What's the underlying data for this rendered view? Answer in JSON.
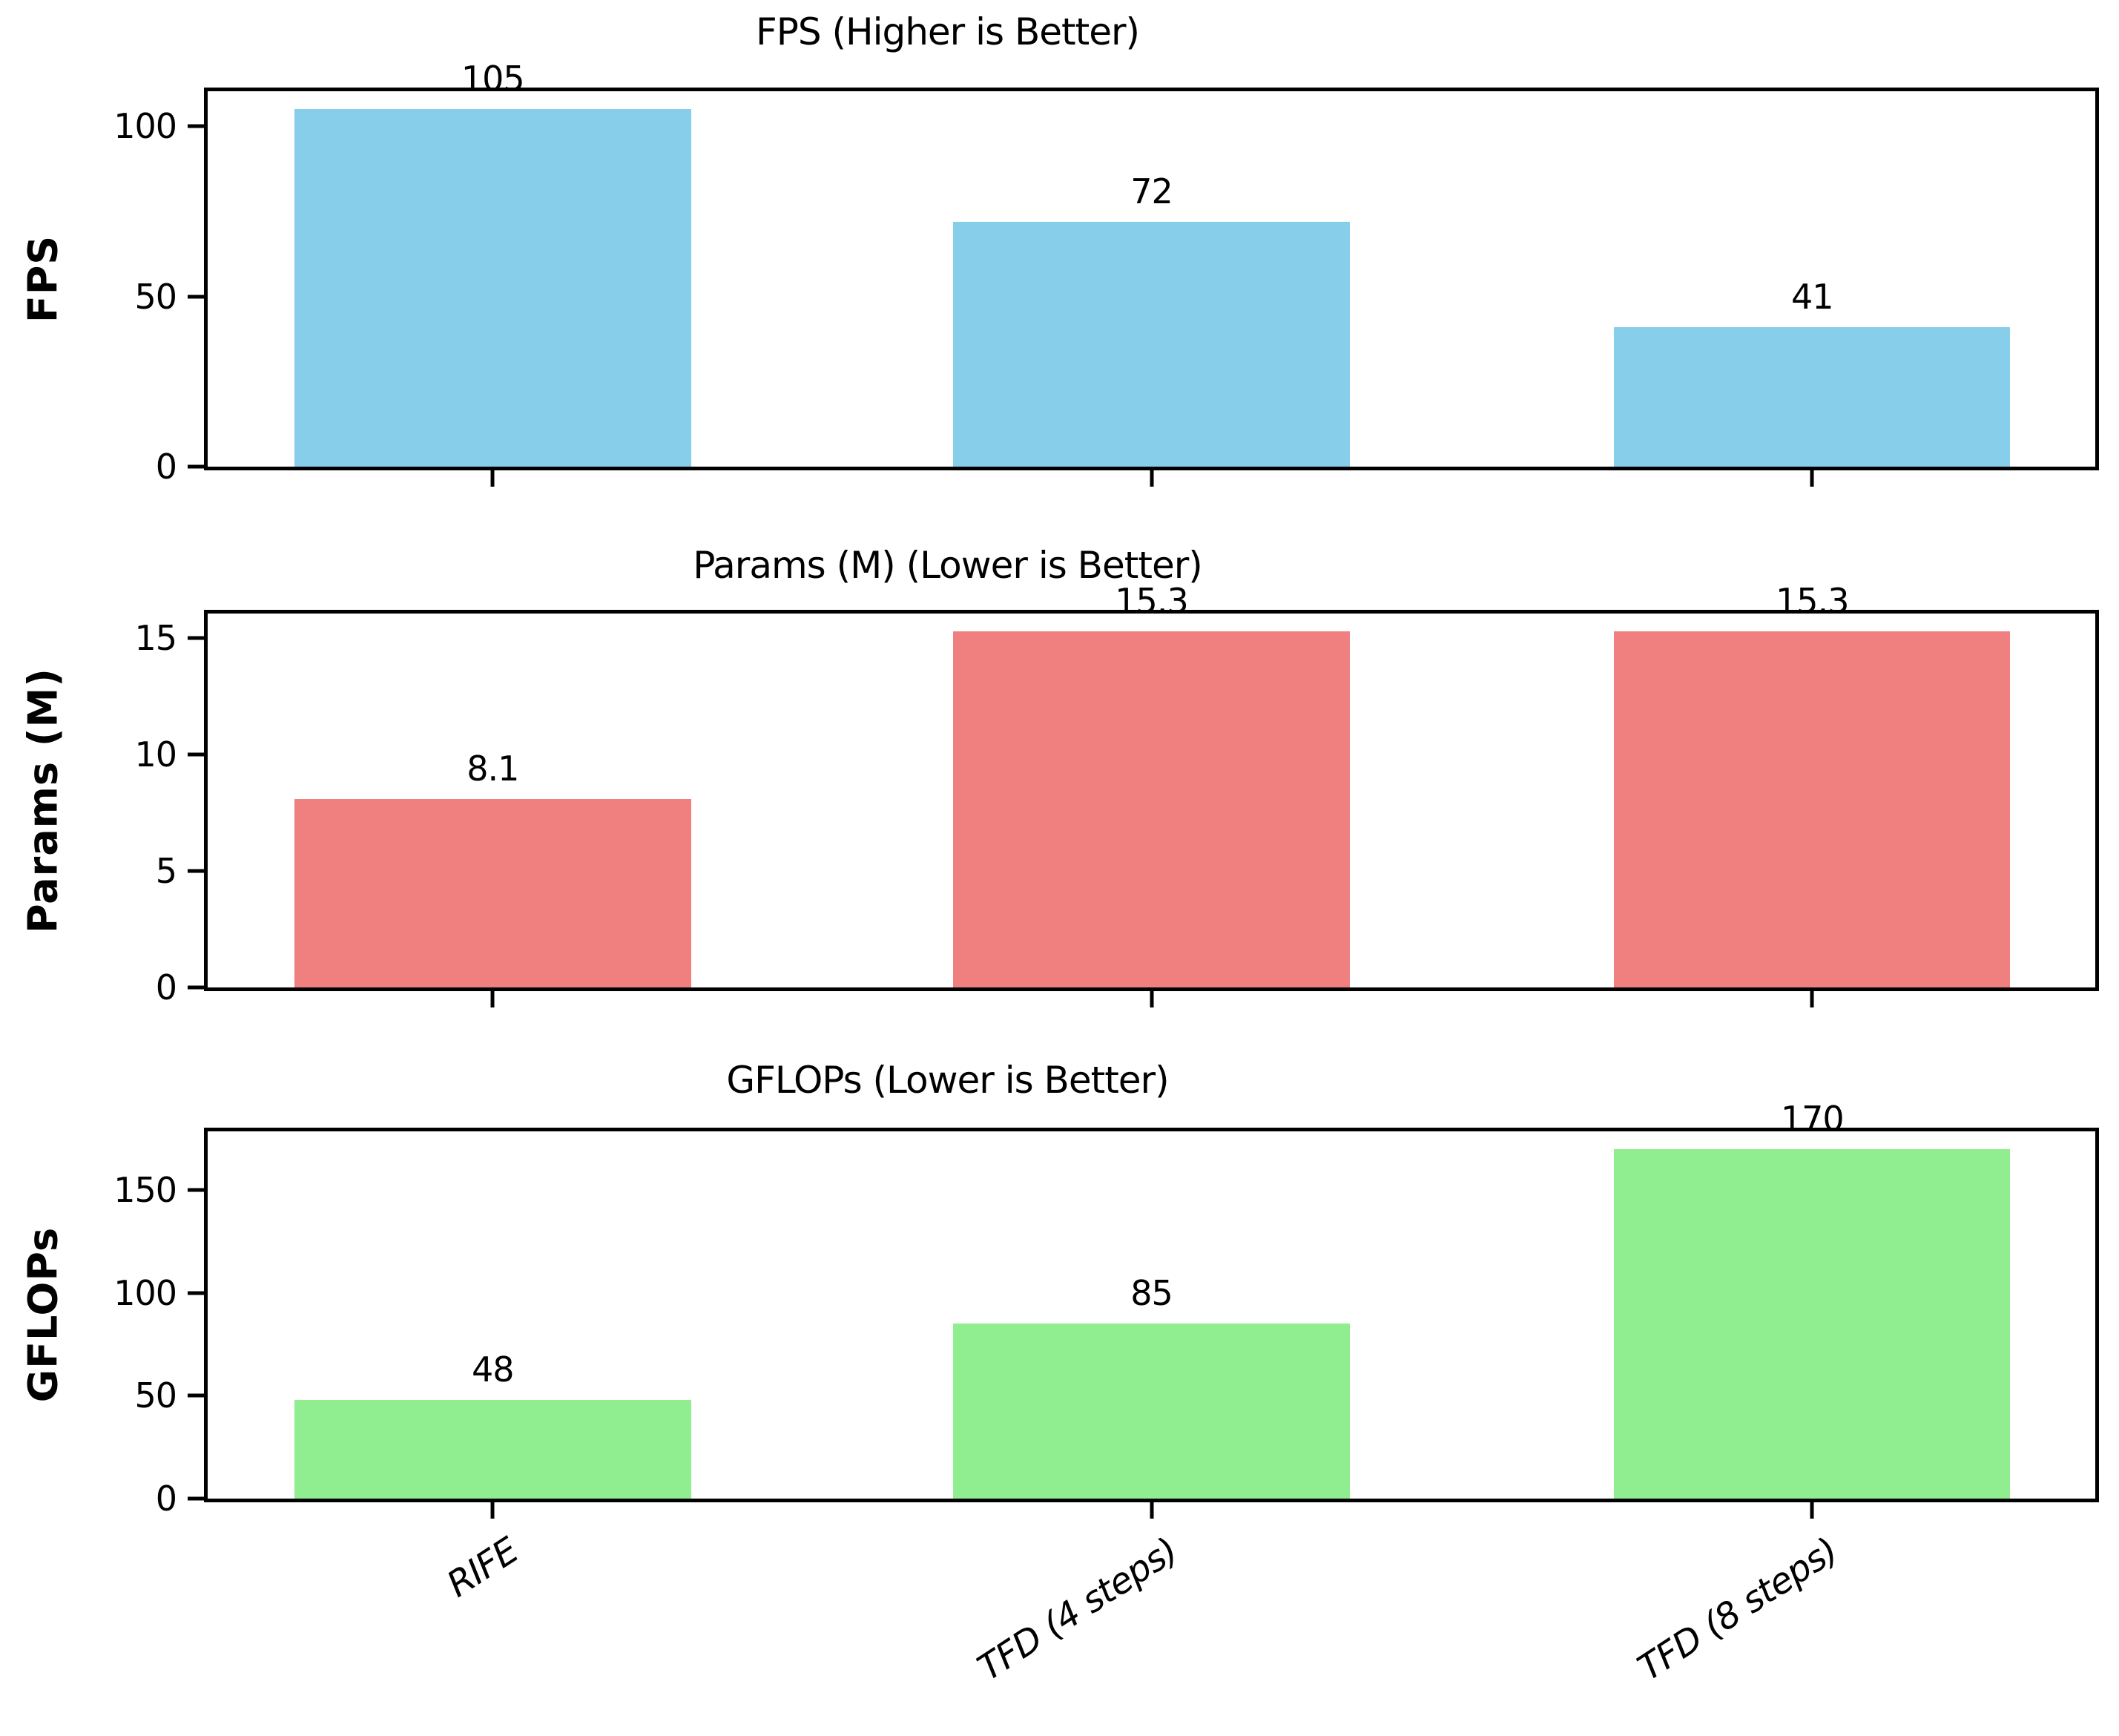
{
  "figure_title": "",
  "categories": [
    "RIFE",
    "TFD (4 steps)",
    "TFD (8 steps)"
  ],
  "colors": {
    "fps_bar": "#87CEEB",
    "params_bar": "#F08080",
    "gflops_bar": "#90EE90",
    "axis": "#000000",
    "background": "#FFFFFF"
  },
  "chart_data": [
    {
      "type": "bar",
      "title": "FPS (Higher is Better)",
      "ylabel": "FPS",
      "xlabel": "",
      "categories": [
        "RIFE",
        "TFD (4 steps)",
        "TFD (8 steps)"
      ],
      "values": [
        105,
        72,
        41
      ],
      "value_labels": [
        "105",
        "72",
        "41"
      ],
      "bar_color": "#87CEEB",
      "yticks": [
        0,
        50,
        100
      ],
      "ytick_labels": [
        "0",
        "50",
        "100"
      ],
      "ylim": [
        0,
        110.25
      ],
      "grid": false,
      "legend": null
    },
    {
      "type": "bar",
      "title": "Params (M) (Lower is Better)",
      "ylabel": "Params (M)",
      "xlabel": "",
      "categories": [
        "RIFE",
        "TFD (4 steps)",
        "TFD (8 steps)"
      ],
      "values": [
        8.1,
        15.3,
        15.3
      ],
      "value_labels": [
        "8.1",
        "15.3",
        "15.3"
      ],
      "bar_color": "#F08080",
      "yticks": [
        0,
        5,
        10,
        15
      ],
      "ytick_labels": [
        "0",
        "5",
        "10",
        "15"
      ],
      "ylim": [
        0,
        16.065
      ],
      "grid": false,
      "legend": null
    },
    {
      "type": "bar",
      "title": "GFLOPs (Lower is Better)",
      "ylabel": "GFLOPs",
      "xlabel": "",
      "categories": [
        "RIFE",
        "TFD (4 steps)",
        "TFD (8 steps)"
      ],
      "values": [
        48,
        85,
        170
      ],
      "value_labels": [
        "48",
        "85",
        "170"
      ],
      "bar_color": "#90EE90",
      "yticks": [
        0,
        50,
        100,
        150
      ],
      "ytick_labels": [
        "0",
        "50",
        "100",
        "150"
      ],
      "ylim": [
        0,
        178.5
      ],
      "grid": false,
      "legend": null
    }
  ]
}
